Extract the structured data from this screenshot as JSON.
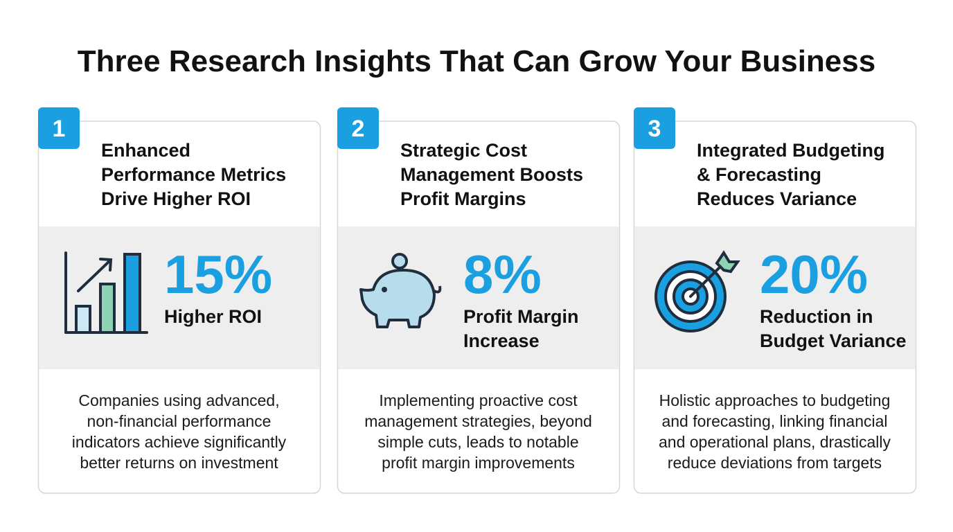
{
  "title": "Three Research Insights That Can Grow Your Business",
  "cards": [
    {
      "number": "1",
      "heading": [
        "Enhanced",
        "Performance Metrics",
        "Drive Higher ROI"
      ],
      "stat": "15%",
      "stat_label": [
        "Higher ROI"
      ],
      "description": [
        "Companies using advanced,",
        "non-financial performance",
        "indicators achieve significantly",
        "better returns on investment"
      ]
    },
    {
      "number": "2",
      "heading": [
        "Strategic Cost",
        "Management Boosts",
        "Profit Margins"
      ],
      "stat": "8%",
      "stat_label": [
        "Profit Margin",
        "Increase"
      ],
      "description": [
        "Implementing proactive cost",
        "management strategies, beyond",
        "simple cuts, leads to notable",
        "profit margin improvements"
      ]
    },
    {
      "number": "3",
      "heading": [
        "Integrated Budgeting",
        "& Forecasting",
        "Reduces Variance"
      ],
      "stat": "20%",
      "stat_label": [
        "Reduction in",
        "Budget Variance"
      ],
      "description": [
        "Holistic approaches to budgeting",
        "and forecasting, linking financial",
        "and operational plans, drastically",
        "reduce deviations from targets"
      ]
    }
  ]
}
